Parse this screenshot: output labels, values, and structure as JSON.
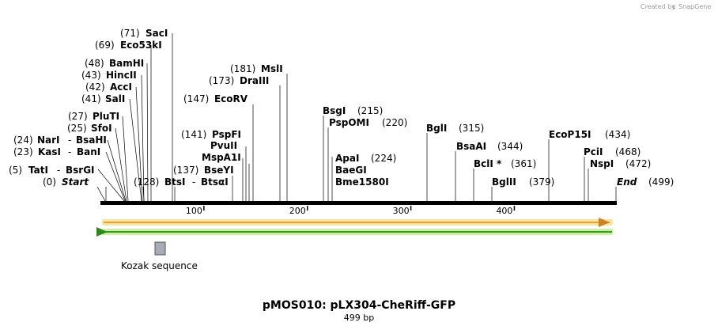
{
  "credit": {
    "prefix": "Created by",
    "brand": "SnapGene"
  },
  "title": "pMOS010: pLX304-CheRiff-GFP",
  "length_label": "499 bp",
  "ruler": {
    "ticks": [
      "100",
      "200",
      "300",
      "400"
    ],
    "values": [
      100,
      200,
      300,
      400
    ],
    "length": 499
  },
  "colors": {
    "forward_arrow": "#e8a03a",
    "forward_glow": "#f5e6a0",
    "reverse_arrow": "#3a9a20",
    "reverse_glow": "#c9f0a0",
    "feature": "#a8acb4"
  },
  "feature": {
    "label": "Kozak sequence"
  },
  "sites": {
    "start": {
      "pos": "(0)",
      "name": "Start"
    },
    "end": {
      "name": "End",
      "pos": "(499)"
    },
    "tati": {
      "pos": "(5)",
      "name": "TatI",
      "sep": "-",
      "alt": "BsrGI"
    },
    "kasi": {
      "pos": "(23)",
      "name": "KasI",
      "sep": "-",
      "alt": "BanI"
    },
    "nari": {
      "pos": "(24)",
      "name": "NarI",
      "sep": "-",
      "alt": "BsaHI"
    },
    "sfoi": {
      "pos": "(25)",
      "name": "SfoI"
    },
    "pluti": {
      "pos": "(27)",
      "name": "PluTI"
    },
    "sali": {
      "pos": "(41)",
      "name": "SalI"
    },
    "acci": {
      "pos": "(42)",
      "name": "AccI"
    },
    "hincii": {
      "pos": "(43)",
      "name": "HincII"
    },
    "bamhi": {
      "pos": "(48)",
      "name": "BamHI"
    },
    "eco53ki": {
      "pos": "(69)",
      "name": "Eco53kI"
    },
    "saci": {
      "pos": "(71)",
      "name": "SacI"
    },
    "btsi": {
      "pos": "(128)",
      "name": "BtsI",
      "sep": "-",
      "alt": "BtsαI"
    },
    "bseyi": {
      "pos": "(137)",
      "name": "BseYI"
    },
    "mspa1i": {
      "name": "MspA1I"
    },
    "pvuii": {
      "name": "PvuII"
    },
    "pspfi": {
      "pos": "(141)",
      "name": "PspFI"
    },
    "ecorv": {
      "pos": "(147)",
      "name": "EcoRV"
    },
    "draiii": {
      "pos": "(173)",
      "name": "DraIII"
    },
    "msli": {
      "pos": "(181)",
      "name": "MslI"
    },
    "bsgi": {
      "name": "BsgI",
      "pos": "(215)"
    },
    "pspomi": {
      "name": "PspOMI",
      "pos": "(220)"
    },
    "apai": {
      "name": "ApaI",
      "pos": "(224)"
    },
    "baegi": {
      "name": "BaeGI"
    },
    "bme1580i": {
      "name": "Bme1580I"
    },
    "bgli": {
      "name": "BglI",
      "pos": "(315)"
    },
    "bsaai": {
      "name": "BsaAI",
      "pos": "(344)"
    },
    "bcli": {
      "name": "BclI *",
      "pos": "(361)"
    },
    "bglii": {
      "name": "BglII",
      "pos": "(379)"
    },
    "ecop15i": {
      "name": "EcoP15I",
      "pos": "(434)"
    },
    "pcii": {
      "name": "PciI",
      "pos": "(468)"
    },
    "nspi": {
      "name": "NspI",
      "pos": "(472)"
    }
  }
}
